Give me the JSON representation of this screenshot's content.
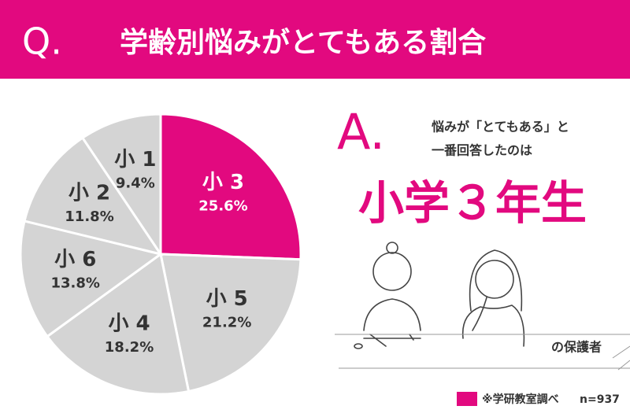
{
  "chart_data": {
    "type": "pie",
    "title_marker": "Q.",
    "title": "学齢別悩みがとてもある割合",
    "categories": [
      "小 3",
      "小 5",
      "小 4",
      "小 6",
      "小 2",
      "小 1"
    ],
    "values": [
      25.6,
      21.2,
      18.2,
      13.8,
      11.8,
      9.4
    ],
    "value_labels": [
      "25.6%",
      "21.2%",
      "18.2%",
      "13.8%",
      "11.8%",
      "9.4%"
    ],
    "colors": [
      "#e2097f",
      "#d4d4d4",
      "#d4d4d4",
      "#d4d4d4",
      "#d4d4d4",
      "#d4d4d4"
    ],
    "annotations": {
      "answer_marker": "A.",
      "answer_line1": "悩みが「とてもある」と",
      "answer_line2": "一番回答したのは",
      "answer": "小学３年生",
      "figure_label": "の保護者",
      "source": "※学研教室調べ",
      "sample": "n=937"
    }
  }
}
